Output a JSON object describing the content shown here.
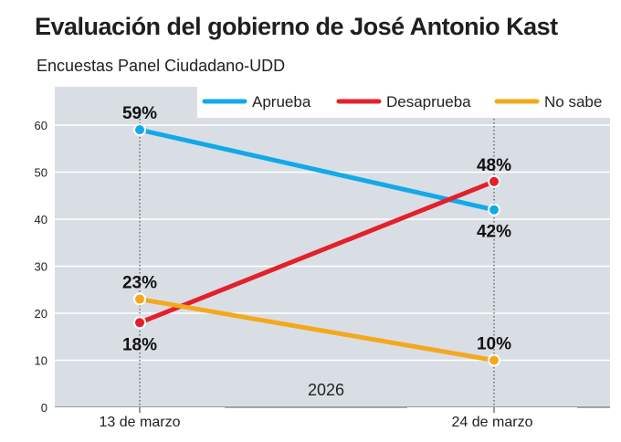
{
  "chart_data": {
    "type": "line",
    "title": "Evaluación del gobierno de José Antonio Kast",
    "subtitle": "Encuestas Panel Ciudadano-UDD",
    "categories": [
      "13 de marzo",
      "24 de marzo"
    ],
    "ylim": [
      0,
      60
    ],
    "yticks": [
      0,
      10,
      20,
      30,
      40,
      50,
      60
    ],
    "grid": true,
    "legend_position": "top-right",
    "annotation": "2026",
    "series": [
      {
        "name": "Aprueba",
        "values": [
          59,
          42
        ],
        "labels": [
          "59%",
          "42%"
        ],
        "color": "#12a9e8"
      },
      {
        "name": "Desaprueba",
        "values": [
          18,
          48
        ],
        "labels": [
          "18%",
          "48%"
        ],
        "color": "#e3202b"
      },
      {
        "name": "No sabe",
        "values": [
          23,
          10
        ],
        "labels": [
          "23%",
          "10%"
        ],
        "color": "#f4a81c"
      }
    ]
  }
}
